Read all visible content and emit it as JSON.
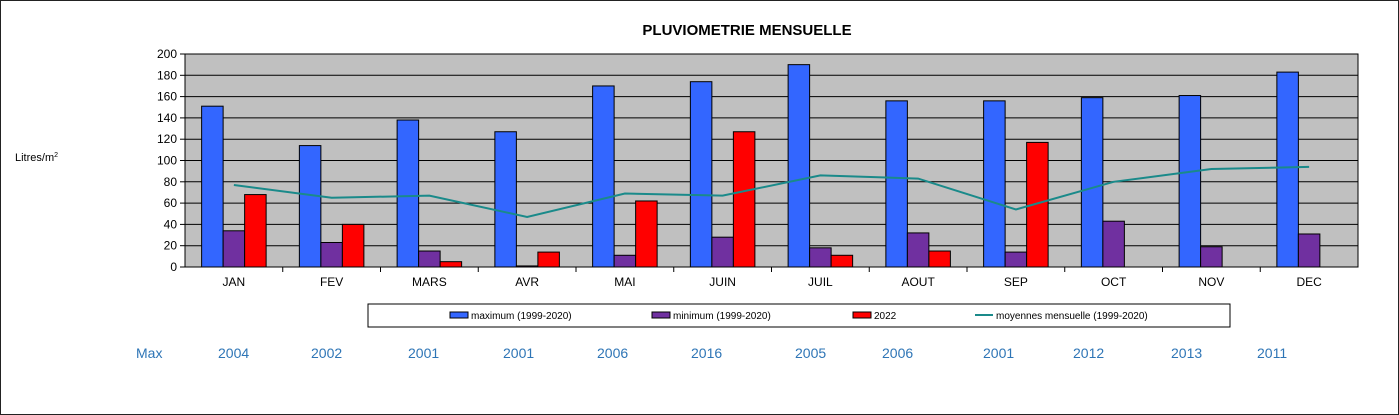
{
  "chart_data": {
    "type": "bar",
    "title": "PLUVIOMETRIE MENSUELLE",
    "ylabel": "Litres/m",
    "ylabel_sup": "2",
    "ylim": [
      0,
      200
    ],
    "ytick_step": 20,
    "grid": true,
    "legend_position": "bottom",
    "categories": [
      "JAN",
      "FEV",
      "MARS",
      "AVR",
      "MAI",
      "JUIN",
      "JUIL",
      "AOUT",
      "SEP",
      "OCT",
      "NOV",
      "DEC"
    ],
    "series": [
      {
        "name": "maximum (1999-2020)",
        "kind": "bar",
        "color": "#3366ff",
        "values": [
          151,
          114,
          138,
          127,
          170,
          174,
          190,
          156,
          156,
          159,
          161,
          183
        ]
      },
      {
        "name": "minimum (1999-2020)",
        "kind": "bar",
        "color": "#7030a0",
        "values": [
          34,
          23,
          15,
          1,
          11,
          28,
          18,
          32,
          14,
          43,
          19,
          31
        ]
      },
      {
        "name": "2022",
        "kind": "bar",
        "color": "#ff0000",
        "values": [
          68,
          40,
          5,
          14,
          62,
          127,
          11,
          15,
          117,
          null,
          null,
          null
        ]
      },
      {
        "name": "moyennes mensuelle (1999-2020)",
        "kind": "line",
        "color": "#1a8a8a",
        "values": [
          77,
          65,
          67,
          47,
          69,
          67,
          86,
          83,
          54,
          80,
          92,
          94
        ]
      }
    ]
  },
  "max_row": {
    "label": "Max",
    "years": [
      "2004",
      "2002",
      "2001",
      "2001",
      "2006",
      "2016",
      "2005",
      "2006",
      "2001",
      "2012",
      "2013",
      "2011"
    ]
  }
}
